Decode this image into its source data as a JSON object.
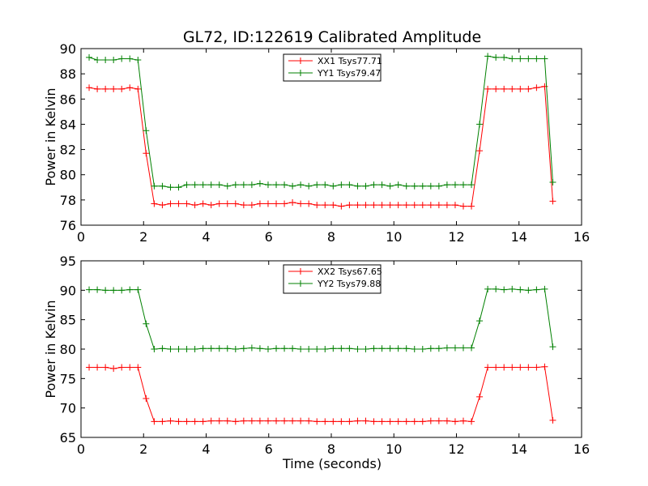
{
  "chart_data": {
    "title": "GL72, ID:122619 Calibrated Amplitude",
    "xlabel": "Time (seconds)",
    "ylabel": "Power in Kelvin",
    "colors": {
      "XX": "#ff0000",
      "YY": "#008000"
    },
    "x": [
      0.26,
      0.52,
      0.78,
      1.04,
      1.3,
      1.56,
      1.82,
      2.08,
      2.34,
      2.6,
      2.86,
      3.12,
      3.38,
      3.64,
      3.9,
      4.16,
      4.42,
      4.68,
      4.94,
      5.2,
      5.46,
      5.72,
      5.98,
      6.24,
      6.5,
      6.76,
      7.02,
      7.28,
      7.54,
      7.8,
      8.06,
      8.32,
      8.58,
      8.84,
      9.1,
      9.36,
      9.62,
      9.88,
      10.14,
      10.4,
      10.66,
      10.92,
      11.18,
      11.44,
      11.7,
      11.96,
      12.22,
      12.48,
      12.74,
      13.0,
      13.26,
      13.52,
      13.78,
      14.04,
      14.3,
      14.56,
      14.82,
      15.08
    ],
    "subplots": [
      {
        "xlim": [
          0,
          16
        ],
        "ylim": [
          76,
          90
        ],
        "xticks": [
          "0",
          "2",
          "4",
          "6",
          "8",
          "10",
          "12",
          "14",
          "16"
        ],
        "yticks": [
          "76",
          "78",
          "80",
          "82",
          "84",
          "86",
          "88",
          "90"
        ],
        "xtick_values": [
          0,
          2,
          4,
          6,
          8,
          10,
          12,
          14,
          16
        ],
        "ytick_values": [
          76,
          78,
          80,
          82,
          84,
          86,
          88,
          90
        ],
        "legend_position": "top-center",
        "series": [
          {
            "name": "XX1 Tsys77.71",
            "color": "#ff0000",
            "values": [
              86.9,
              86.8,
              86.8,
              86.8,
              86.8,
              86.9,
              86.8,
              81.7,
              77.7,
              77.6,
              77.7,
              77.7,
              77.7,
              77.6,
              77.7,
              77.6,
              77.7,
              77.7,
              77.7,
              77.6,
              77.6,
              77.7,
              77.7,
              77.7,
              77.7,
              77.8,
              77.7,
              77.7,
              77.6,
              77.6,
              77.6,
              77.5,
              77.6,
              77.6,
              77.6,
              77.6,
              77.6,
              77.6,
              77.6,
              77.6,
              77.6,
              77.6,
              77.6,
              77.6,
              77.6,
              77.6,
              77.5,
              77.5,
              81.9,
              86.8,
              86.8,
              86.8,
              86.8,
              86.8,
              86.8,
              86.9,
              87.0,
              77.9
            ]
          },
          {
            "name": "YY1 Tsys79.47",
            "color": "#008000",
            "values": [
              89.3,
              89.1,
              89.1,
              89.1,
              89.2,
              89.2,
              89.1,
              83.5,
              79.1,
              79.1,
              79.0,
              79.0,
              79.2,
              79.2,
              79.2,
              79.2,
              79.2,
              79.1,
              79.2,
              79.2,
              79.2,
              79.3,
              79.2,
              79.2,
              79.2,
              79.1,
              79.2,
              79.1,
              79.2,
              79.2,
              79.1,
              79.2,
              79.2,
              79.1,
              79.1,
              79.2,
              79.2,
              79.1,
              79.2,
              79.1,
              79.1,
              79.1,
              79.1,
              79.1,
              79.2,
              79.2,
              79.2,
              79.2,
              84.0,
              89.4,
              89.3,
              89.3,
              89.2,
              89.2,
              89.2,
              89.2,
              89.2,
              79.4
            ]
          }
        ]
      },
      {
        "xlim": [
          0,
          16
        ],
        "ylim": [
          65,
          95
        ],
        "xticks": [
          "0",
          "2",
          "4",
          "6",
          "8",
          "10",
          "12",
          "14",
          "16"
        ],
        "yticks": [
          "65",
          "70",
          "75",
          "80",
          "85",
          "90",
          "95"
        ],
        "xtick_values": [
          0,
          2,
          4,
          6,
          8,
          10,
          12,
          14,
          16
        ],
        "ytick_values": [
          65,
          70,
          75,
          80,
          85,
          90,
          95
        ],
        "legend_position": "top-center",
        "series": [
          {
            "name": "XX2 Tsys67.65",
            "color": "#ff0000",
            "values": [
              76.9,
              76.9,
              76.9,
              76.7,
              76.9,
              76.9,
              76.9,
              71.6,
              67.7,
              67.7,
              67.8,
              67.7,
              67.7,
              67.7,
              67.7,
              67.8,
              67.8,
              67.8,
              67.7,
              67.8,
              67.8,
              67.8,
              67.8,
              67.8,
              67.8,
              67.8,
              67.8,
              67.8,
              67.7,
              67.7,
              67.7,
              67.7,
              67.7,
              67.8,
              67.8,
              67.7,
              67.7,
              67.7,
              67.7,
              67.7,
              67.7,
              67.7,
              67.8,
              67.8,
              67.8,
              67.7,
              67.8,
              67.7,
              71.9,
              76.9,
              76.9,
              76.9,
              76.9,
              76.9,
              76.9,
              76.9,
              77.0,
              67.9
            ]
          },
          {
            "name": "YY2 Tsys79.88",
            "color": "#008000",
            "values": [
              90.1,
              90.1,
              90.0,
              90.0,
              90.0,
              90.1,
              90.1,
              84.3,
              80.0,
              80.1,
              80.0,
              80.0,
              80.0,
              80.0,
              80.1,
              80.1,
              80.1,
              80.1,
              80.0,
              80.1,
              80.2,
              80.1,
              80.0,
              80.1,
              80.1,
              80.1,
              80.0,
              80.0,
              80.0,
              80.0,
              80.1,
              80.1,
              80.1,
              80.0,
              80.0,
              80.1,
              80.1,
              80.1,
              80.1,
              80.1,
              80.0,
              80.0,
              80.1,
              80.1,
              80.2,
              80.2,
              80.2,
              80.2,
              84.8,
              90.2,
              90.2,
              90.1,
              90.2,
              90.1,
              90.0,
              90.1,
              90.2,
              80.4
            ]
          }
        ]
      }
    ]
  }
}
